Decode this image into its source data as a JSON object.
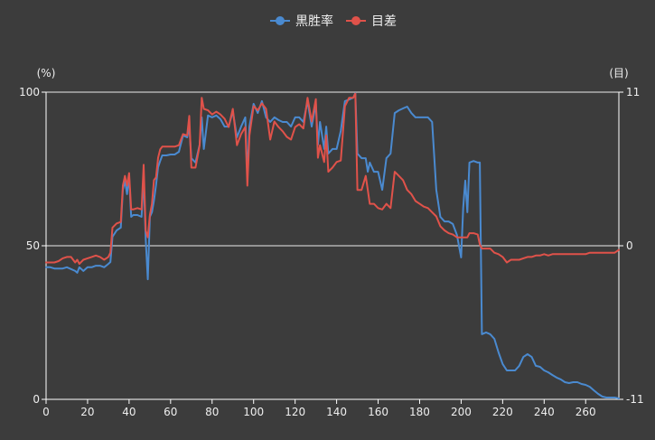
{
  "colors": {
    "background": "#3c3c3c",
    "axis": "#ffffff",
    "text": "#eeeeee"
  },
  "chart_data": {
    "type": "line",
    "legend": "top",
    "grid": "horizontal",
    "ylabel": "(%)",
    "y2label": "(目)",
    "xlim": [
      0,
      276
    ],
    "ylim": [
      0,
      100
    ],
    "y2lim": [
      -11,
      11
    ],
    "x_ticks": [
      0,
      20,
      40,
      60,
      80,
      100,
      120,
      140,
      160,
      180,
      200,
      220,
      240,
      260
    ],
    "y_ticks": [
      100,
      50,
      0
    ],
    "y2_ticks": [
      11,
      0,
      -11
    ],
    "x": [
      0,
      2,
      4,
      6,
      8,
      10,
      12,
      14,
      15,
      16,
      18,
      20,
      22,
      24,
      26,
      28,
      30,
      31,
      32,
      34,
      36,
      37,
      38,
      39,
      40,
      41,
      42,
      44,
      46,
      47,
      48,
      49,
      50,
      51,
      52,
      53,
      54,
      55,
      56,
      58,
      60,
      62,
      64,
      66,
      68,
      69,
      70,
      72,
      74,
      75,
      76,
      78,
      80,
      82,
      84,
      86,
      88,
      90,
      92,
      94,
      96,
      97,
      98,
      100,
      102,
      104,
      106,
      108,
      110,
      112,
      114,
      116,
      118,
      120,
      122,
      124,
      126,
      128,
      130,
      131,
      132,
      134,
      135,
      136,
      138,
      140,
      142,
      144,
      146,
      148,
      149,
      150,
      152,
      154,
      155,
      156,
      158,
      160,
      162,
      164,
      166,
      168,
      170,
      172,
      174,
      176,
      178,
      180,
      182,
      184,
      186,
      188,
      190,
      192,
      194,
      196,
      198,
      200,
      201,
      202,
      203,
      204,
      206,
      208,
      209,
      210,
      212,
      214,
      216,
      218,
      220,
      222,
      224,
      226,
      228,
      230,
      232,
      234,
      236,
      238,
      240,
      242,
      244,
      246,
      248,
      250,
      252,
      254,
      256,
      258,
      260,
      262,
      264,
      266,
      268,
      270,
      272,
      274,
      276
    ],
    "series": [
      {
        "name": "黒胜率",
        "axis": "left",
        "color": "#4a8ad0",
        "values": [
          43,
          43,
          42.6,
          42.6,
          42.6,
          43,
          42.4,
          41.8,
          41.2,
          43,
          41.8,
          43,
          43,
          43.5,
          43.5,
          43,
          44.1,
          44.7,
          52.9,
          55,
          55.9,
          68.2,
          71.2,
          66.8,
          72.6,
          59.4,
          60,
          60,
          59.4,
          72.6,
          52,
          39.1,
          59.4,
          60.9,
          64.7,
          69.7,
          75.6,
          77.6,
          79.4,
          79.4,
          79.7,
          79.7,
          80.6,
          85.9,
          85.3,
          88.8,
          78.5,
          77.1,
          82.9,
          91.8,
          81.5,
          92.4,
          91.8,
          92.4,
          91.2,
          88.8,
          88.8,
          93.8,
          85.3,
          88.8,
          91.8,
          72.6,
          88.8,
          96.2,
          93.2,
          97.1,
          91.8,
          90.3,
          91.8,
          90.9,
          90.3,
          90.3,
          88.8,
          91.8,
          91.8,
          90.3,
          97.1,
          88.8,
          96.2,
          82.9,
          90.3,
          81.5,
          88.8,
          80,
          81.5,
          81.5,
          87.4,
          97.1,
          97.6,
          98.2,
          99.7,
          80,
          78.5,
          78.5,
          74.1,
          77.1,
          74.1,
          74.1,
          68.2,
          78.5,
          80,
          93.2,
          94.1,
          94.7,
          95.3,
          93.2,
          91.8,
          91.8,
          91.8,
          91.8,
          90.3,
          68.2,
          59.4,
          57.9,
          57.9,
          57.1,
          53.5,
          46.2,
          62.4,
          71.2,
          60.9,
          77.1,
          77.6,
          77.1,
          77.1,
          21.2,
          21.8,
          21.2,
          19.7,
          15.3,
          11.5,
          9.4,
          9.4,
          9.4,
          10.9,
          13.8,
          14.7,
          13.8,
          10.9,
          10.6,
          9.4,
          8.8,
          7.9,
          7.1,
          6.5,
          5.6,
          5.3,
          5.6,
          5.6,
          5.0,
          4.7,
          4.1,
          2.9,
          1.8,
          0.9,
          0.6,
          0.6,
          0.6,
          0.3
        ]
      },
      {
        "name": "目差",
        "axis": "right",
        "color": "#e0524a",
        "values": [
          -1.2,
          -1.2,
          -1.2,
          -1.1,
          -0.9,
          -0.8,
          -0.8,
          -1.2,
          -1.0,
          -1.3,
          -1.0,
          -0.9,
          -0.8,
          -0.7,
          -0.8,
          -1.0,
          -0.8,
          -0.5,
          1.3,
          1.6,
          1.7,
          4.3,
          5.0,
          4.3,
          5.2,
          2.6,
          2.6,
          2.7,
          2.6,
          5.8,
          1.1,
          0.6,
          2.2,
          3.0,
          4.7,
          4.9,
          6.3,
          6.9,
          7.1,
          7.1,
          7.1,
          7.1,
          7.2,
          8.0,
          7.9,
          9.3,
          5.6,
          5.6,
          7.2,
          10.6,
          9.8,
          9.7,
          9.4,
          9.6,
          9.4,
          9.1,
          8.5,
          9.8,
          7.2,
          8.0,
          8.5,
          4.3,
          7.9,
          10.0,
          9.7,
          10.2,
          9.8,
          7.6,
          8.9,
          8.5,
          8.2,
          7.8,
          7.6,
          8.5,
          8.7,
          8.4,
          10.6,
          8.9,
          10.5,
          6.3,
          7.2,
          6.0,
          7.9,
          5.3,
          5.6,
          6.0,
          6.1,
          10.0,
          10.6,
          10.6,
          10.9,
          4.0,
          4.0,
          5.0,
          4.0,
          3.0,
          3.0,
          2.7,
          2.6,
          3.0,
          2.7,
          5.3,
          5.0,
          4.7,
          4.0,
          3.7,
          3.2,
          3.0,
          2.8,
          2.7,
          2.4,
          2.1,
          1.4,
          1.1,
          0.9,
          0.8,
          0.6,
          0.6,
          0.6,
          0.6,
          0.6,
          0.9,
          0.9,
          0.8,
          0.1,
          -0.2,
          -0.2,
          -0.2,
          -0.5,
          -0.6,
          -0.8,
          -1.2,
          -1.0,
          -1.0,
          -1.0,
          -0.9,
          -0.8,
          -0.8,
          -0.7,
          -0.7,
          -0.6,
          -0.7,
          -0.6,
          -0.6,
          -0.6,
          -0.6,
          -0.6,
          -0.6,
          -0.6,
          -0.6,
          -0.6,
          -0.5,
          -0.5,
          -0.5,
          -0.5,
          -0.5,
          -0.5,
          -0.5,
          -0.3
        ]
      }
    ]
  }
}
